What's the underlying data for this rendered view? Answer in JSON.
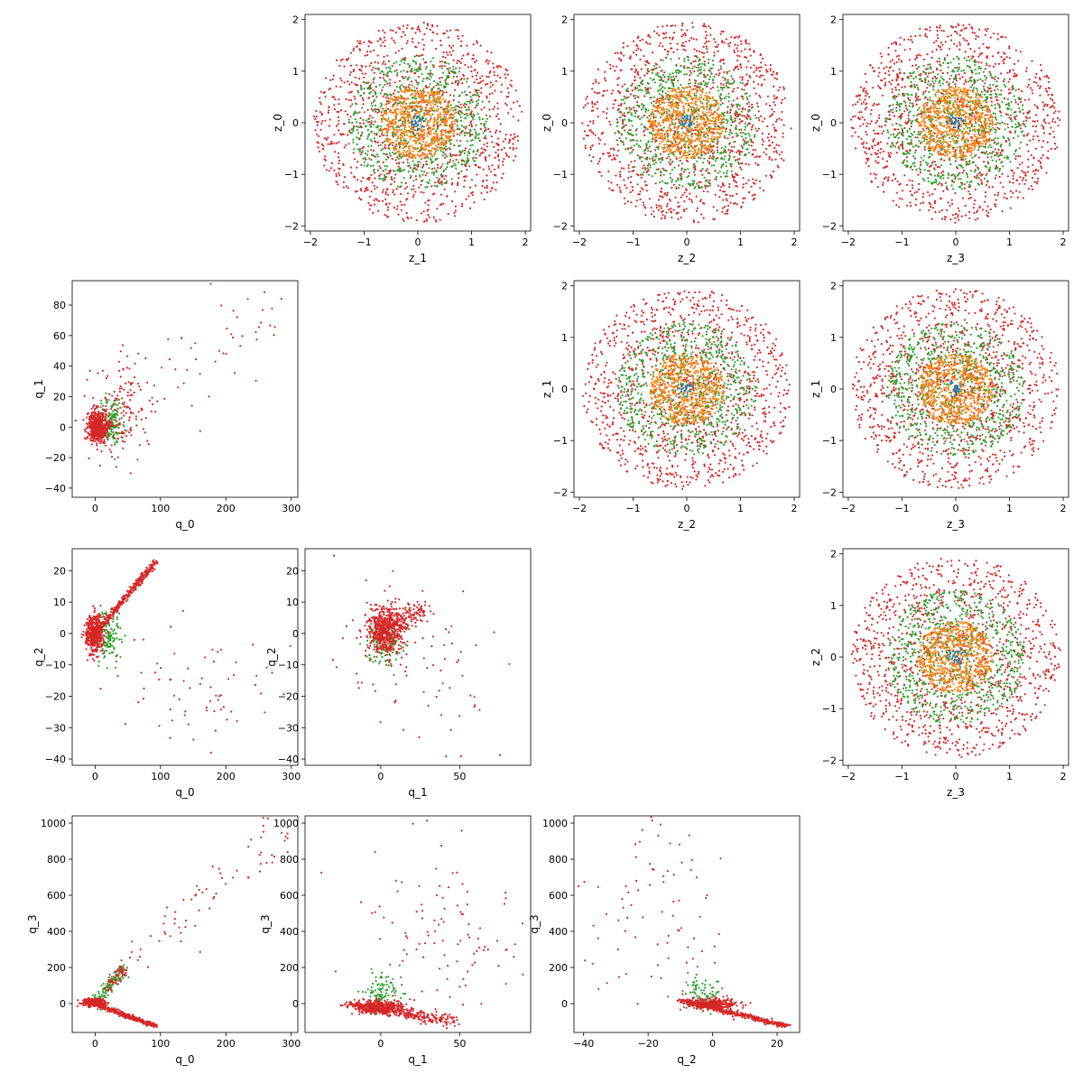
{
  "colors": {
    "blue": "#1f77b4",
    "orange": "#ff7f0e",
    "green": "#2ca02c",
    "red": "#d62728"
  },
  "chart_data": [
    {
      "id": "z0_vs_z1",
      "type": "scatter",
      "row": 0,
      "col": 1,
      "xlabel": "z_1",
      "ylabel": "z_0",
      "xlim": [
        -2.1,
        2.1
      ],
      "ylim": [
        -2.1,
        2.1
      ],
      "xticks": [
        -2,
        -1,
        0,
        1,
        2
      ],
      "yticks": [
        -2,
        -1,
        0,
        1,
        2
      ],
      "grid": false,
      "series": [
        {
          "color": "red",
          "description": "uniform disk, radius 2",
          "count": 1150,
          "distribution": "disk",
          "radius": 1.95
        },
        {
          "color": "green",
          "description": "uniform disk, radius 1.3",
          "count": 700,
          "distribution": "disk",
          "radius": 1.3
        },
        {
          "color": "orange",
          "description": "uniform disk, radius 0.7",
          "count": 600,
          "distribution": "disk",
          "radius": 0.7
        },
        {
          "color": "blue",
          "description": "cluster near origin",
          "count": 30,
          "distribution": "gauss",
          "sigma": 0.08
        }
      ]
    },
    {
      "id": "z0_vs_z2",
      "type": "scatter",
      "row": 0,
      "col": 2,
      "xlabel": "z_2",
      "ylabel": "z_0",
      "xlim": [
        -2.1,
        2.1
      ],
      "ylim": [
        -2.1,
        2.1
      ],
      "xticks": [
        -2,
        -1,
        0,
        1,
        2
      ],
      "yticks": [
        -2,
        -1,
        0,
        1,
        2
      ],
      "grid": false,
      "series": [
        {
          "color": "red",
          "description": "uniform disk, radius 2",
          "count": 1150,
          "distribution": "disk",
          "radius": 1.95
        },
        {
          "color": "green",
          "description": "uniform disk, radius 1.3",
          "count": 700,
          "distribution": "disk",
          "radius": 1.3
        },
        {
          "color": "orange",
          "description": "uniform disk, radius 0.7",
          "count": 600,
          "distribution": "disk",
          "radius": 0.7
        },
        {
          "color": "blue",
          "description": "cluster near origin",
          "count": 30,
          "distribution": "gauss",
          "sigma": 0.08
        }
      ]
    },
    {
      "id": "z0_vs_z3",
      "type": "scatter",
      "row": 0,
      "col": 3,
      "xlabel": "z_3",
      "ylabel": "z_0",
      "xlim": [
        -2.1,
        2.1
      ],
      "ylim": [
        -2.1,
        2.1
      ],
      "xticks": [
        -2,
        -1,
        0,
        1,
        2
      ],
      "yticks": [
        -2,
        -1,
        0,
        1,
        2
      ],
      "grid": false,
      "series": [
        {
          "color": "red",
          "description": "uniform disk, radius 2",
          "count": 1150,
          "distribution": "disk",
          "radius": 1.95
        },
        {
          "color": "green",
          "description": "uniform disk, radius 1.3",
          "count": 700,
          "distribution": "disk",
          "radius": 1.3
        },
        {
          "color": "orange",
          "description": "uniform disk, radius 0.7",
          "count": 600,
          "distribution": "disk",
          "radius": 0.7
        },
        {
          "color": "blue",
          "description": "cluster near origin",
          "count": 30,
          "distribution": "gauss",
          "sigma": 0.08
        }
      ]
    },
    {
      "id": "z1_vs_z2",
      "type": "scatter",
      "row": 1,
      "col": 2,
      "xlabel": "z_2",
      "ylabel": "z_1",
      "xlim": [
        -2.1,
        2.1
      ],
      "ylim": [
        -2.1,
        2.1
      ],
      "xticks": [
        -2,
        -1,
        0,
        1,
        2
      ],
      "yticks": [
        -2,
        -1,
        0,
        1,
        2
      ],
      "grid": false,
      "series": [
        {
          "color": "red",
          "description": "uniform disk, radius 2",
          "count": 1150,
          "distribution": "disk",
          "radius": 1.95
        },
        {
          "color": "green",
          "description": "uniform disk, radius 1.3",
          "count": 700,
          "distribution": "disk",
          "radius": 1.3
        },
        {
          "color": "orange",
          "description": "uniform disk, radius 0.7",
          "count": 600,
          "distribution": "disk",
          "radius": 0.7
        },
        {
          "color": "blue",
          "description": "cluster near origin",
          "count": 30,
          "distribution": "gauss",
          "sigma": 0.08
        }
      ]
    },
    {
      "id": "z1_vs_z3",
      "type": "scatter",
      "row": 1,
      "col": 3,
      "xlabel": "z_3",
      "ylabel": "z_1",
      "xlim": [
        -2.1,
        2.1
      ],
      "ylim": [
        -2.1,
        2.1
      ],
      "xticks": [
        -2,
        -1,
        0,
        1,
        2
      ],
      "yticks": [
        -2,
        -1,
        0,
        1,
        2
      ],
      "grid": false,
      "series": [
        {
          "color": "red",
          "description": "uniform disk, radius 2",
          "count": 1150,
          "distribution": "disk",
          "radius": 1.95
        },
        {
          "color": "green",
          "description": "uniform disk, radius 1.3",
          "count": 700,
          "distribution": "disk",
          "radius": 1.3
        },
        {
          "color": "orange",
          "description": "uniform disk, radius 0.7",
          "count": 600,
          "distribution": "disk",
          "radius": 0.7
        },
        {
          "color": "blue",
          "description": "cluster near origin",
          "count": 30,
          "distribution": "gauss",
          "sigma": 0.08
        }
      ]
    },
    {
      "id": "z2_vs_z3",
      "type": "scatter",
      "row": 2,
      "col": 3,
      "xlabel": "z_3",
      "ylabel": "z_2",
      "xlim": [
        -2.1,
        2.1
      ],
      "ylim": [
        -2.1,
        2.1
      ],
      "xticks": [
        -2,
        -1,
        0,
        1,
        2
      ],
      "yticks": [
        -2,
        -1,
        0,
        1,
        2
      ],
      "grid": false,
      "series": [
        {
          "color": "red",
          "description": "uniform disk, radius 2",
          "count": 1150,
          "distribution": "disk",
          "radius": 1.95
        },
        {
          "color": "green",
          "description": "uniform disk, radius 1.3",
          "count": 700,
          "distribution": "disk",
          "radius": 1.3
        },
        {
          "color": "orange",
          "description": "uniform disk, radius 0.7",
          "count": 600,
          "distribution": "disk",
          "radius": 0.7
        },
        {
          "color": "blue",
          "description": "cluster near origin",
          "count": 30,
          "distribution": "gauss",
          "sigma": 0.08
        }
      ]
    },
    {
      "id": "q1_vs_q0",
      "type": "scatter",
      "row": 1,
      "col": 0,
      "xlabel": "q_0",
      "ylabel": "q_1",
      "xlim": [
        -35,
        310
      ],
      "ylim": [
        -46,
        96
      ],
      "xticks": [
        0,
        100,
        200,
        300
      ],
      "yticks": [
        -40,
        -20,
        0,
        20,
        40,
        60,
        80
      ],
      "grid": false,
      "series": [
        {
          "color": "green",
          "description": "dense core",
          "count": 160,
          "distribution": "blob",
          "center": [
            25,
            3
          ],
          "spread": [
            10,
            8
          ]
        },
        {
          "color": "red",
          "description": "dense core",
          "count": 500,
          "distribution": "blob",
          "center": [
            5,
            0
          ],
          "spread": [
            8,
            5
          ]
        },
        {
          "color": "red",
          "description": "tail",
          "count": 150,
          "distribution": "blob",
          "center": [
            40,
            10
          ],
          "spread": [
            25,
            14
          ]
        },
        {
          "color": "red",
          "description": "sparse outliers",
          "count": 55,
          "distribution": "line",
          "from": [
            60,
            10
          ],
          "to": [
            290,
            80
          ],
          "jitter": [
            30,
            15
          ]
        }
      ]
    },
    {
      "id": "q2_vs_q0",
      "type": "scatter",
      "row": 2,
      "col": 0,
      "xlabel": "q_0",
      "ylabel": "q_2",
      "xlim": [
        -35,
        310
      ],
      "ylim": [
        -42,
        27
      ],
      "xticks": [
        0,
        100,
        200,
        300
      ],
      "yticks": [
        -40,
        -30,
        -20,
        -10,
        0,
        10,
        20
      ],
      "grid": false,
      "series": [
        {
          "color": "green",
          "description": "core",
          "count": 120,
          "distribution": "blob",
          "center": [
            20,
            -1
          ],
          "spread": [
            10,
            4
          ]
        },
        {
          "color": "red",
          "description": "dense core",
          "count": 450,
          "distribution": "blob",
          "center": [
            0,
            0
          ],
          "spread": [
            7,
            3
          ]
        },
        {
          "color": "red",
          "description": "diagonal streak",
          "count": 350,
          "distribution": "line",
          "from": [
            0,
            0
          ],
          "to": [
            93,
            23
          ],
          "jitter": [
            2,
            0.6
          ]
        },
        {
          "color": "red",
          "description": "sparse outliers",
          "count": 70,
          "distribution": "blob",
          "center": [
            160,
            -18
          ],
          "spread": [
            70,
            12
          ]
        }
      ]
    },
    {
      "id": "q2_vs_q1",
      "type": "scatter",
      "row": 2,
      "col": 1,
      "xlabel": "q_1",
      "ylabel": "q_2",
      "xlim": [
        -48,
        95
      ],
      "ylim": [
        -42,
        27
      ],
      "xticks": [
        0,
        50
      ],
      "yticks": [
        -40,
        -30,
        -20,
        -10,
        0,
        10,
        20
      ],
      "grid": false,
      "series": [
        {
          "color": "green",
          "description": "core",
          "count": 120,
          "distribution": "blob",
          "center": [
            2,
            -3
          ],
          "spread": [
            6,
            4
          ]
        },
        {
          "color": "red",
          "description": "dense core",
          "count": 550,
          "distribution": "blob",
          "center": [
            3,
            1
          ],
          "spread": [
            6,
            4
          ]
        },
        {
          "color": "red",
          "description": "upper streak",
          "count": 120,
          "distribution": "line",
          "from": [
            5,
            4
          ],
          "to": [
            30,
            8
          ],
          "jitter": [
            3,
            1.5
          ]
        },
        {
          "color": "red",
          "description": "sparse outliers",
          "count": 80,
          "distribution": "blob",
          "center": [
            25,
            -10
          ],
          "spread": [
            28,
            14
          ]
        }
      ]
    },
    {
      "id": "q3_vs_q0",
      "type": "scatter",
      "row": 3,
      "col": 0,
      "xlabel": "q_0",
      "ylabel": "q_3",
      "xlim": [
        -35,
        310
      ],
      "ylim": [
        -160,
        1040
      ],
      "xticks": [
        0,
        100,
        200,
        300
      ],
      "yticks": [
        0,
        200,
        400,
        600,
        800,
        1000
      ],
      "grid": false,
      "series": [
        {
          "color": "green",
          "description": "upward branch",
          "count": 120,
          "distribution": "line",
          "from": [
            0,
            0
          ],
          "to": [
            45,
            200
          ],
          "jitter": [
            4,
            20
          ]
        },
        {
          "color": "red",
          "description": "dense core",
          "count": 300,
          "distribution": "blob",
          "center": [
            0,
            5
          ],
          "spread": [
            8,
            10
          ]
        },
        {
          "color": "red",
          "description": "downward streak",
          "count": 380,
          "distribution": "line",
          "from": [
            -15,
            15
          ],
          "to": [
            93,
            -125
          ],
          "jitter": [
            2,
            6
          ]
        },
        {
          "color": "red",
          "description": "upward branch",
          "count": 60,
          "distribution": "line",
          "from": [
            20,
            80
          ],
          "to": [
            45,
            200
          ],
          "jitter": [
            4,
            20
          ]
        },
        {
          "color": "red",
          "description": "sparse outliers",
          "count": 70,
          "distribution": "line",
          "from": [
            60,
            250
          ],
          "to": [
            290,
            950
          ],
          "jitter": [
            15,
            60
          ]
        }
      ]
    },
    {
      "id": "q3_vs_q1",
      "type": "scatter",
      "row": 3,
      "col": 1,
      "xlabel": "q_1",
      "ylabel": "q_3",
      "xlim": [
        -48,
        95
      ],
      "ylim": [
        -160,
        1040
      ],
      "xticks": [
        0,
        50
      ],
      "yticks": [
        0,
        200,
        400,
        600,
        800,
        1000
      ],
      "grid": false,
      "series": [
        {
          "color": "green",
          "description": "core",
          "count": 100,
          "distribution": "blob",
          "center": [
            0,
            60
          ],
          "spread": [
            6,
            50
          ]
        },
        {
          "color": "red",
          "description": "dense core",
          "count": 350,
          "distribution": "blob",
          "center": [
            0,
            -20
          ],
          "spread": [
            8,
            18
          ]
        },
        {
          "color": "red",
          "description": "diagonal streak",
          "count": 300,
          "distribution": "line",
          "from": [
            -20,
            0
          ],
          "to": [
            45,
            -100
          ],
          "jitter": [
            4,
            15
          ]
        },
        {
          "color": "red",
          "description": "sparse outliers",
          "count": 110,
          "distribution": "blob",
          "center": [
            35,
            380
          ],
          "spread": [
            25,
            260
          ]
        }
      ]
    },
    {
      "id": "q3_vs_q2",
      "type": "scatter",
      "row": 3,
      "col": 2,
      "xlabel": "q_2",
      "ylabel": "q_3",
      "xlim": [
        -43,
        27
      ],
      "ylim": [
        -160,
        1040
      ],
      "xticks": [
        -40,
        -20,
        0,
        20
      ],
      "yticks": [
        0,
        200,
        400,
        600,
        800,
        1000
      ],
      "grid": false,
      "series": [
        {
          "color": "green",
          "description": "core",
          "count": 90,
          "distribution": "blob",
          "center": [
            -3,
            60
          ],
          "spread": [
            3,
            50
          ]
        },
        {
          "color": "red",
          "description": "dense core",
          "count": 300,
          "distribution": "blob",
          "center": [
            0,
            0
          ],
          "spread": [
            4,
            15
          ]
        },
        {
          "color": "red",
          "description": "diagonal streak",
          "count": 400,
          "distribution": "line",
          "from": [
            -10,
            20
          ],
          "to": [
            23,
            -125
          ],
          "jitter": [
            1,
            6
          ]
        },
        {
          "color": "red",
          "description": "sparse outliers",
          "count": 80,
          "distribution": "blob",
          "center": [
            -18,
            520
          ],
          "spread": [
            12,
            260
          ]
        }
      ]
    }
  ]
}
